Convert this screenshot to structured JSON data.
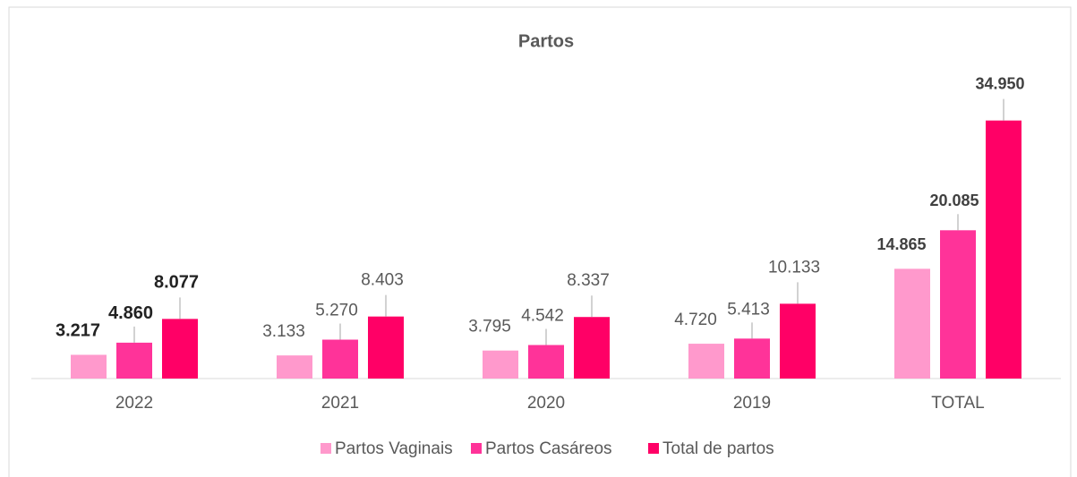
{
  "chart_data": {
    "type": "bar",
    "title": "Partos",
    "categories": [
      "2022",
      "2021",
      "2020",
      "2019",
      "TOTAL"
    ],
    "series": [
      {
        "name": "Partos Vaginais",
        "color": "#ff99cc",
        "values": [
          3217,
          3133,
          3795,
          4720,
          14865
        ],
        "value_labels": [
          "3.217",
          "3.133",
          "3.795",
          "4.720",
          "14.865"
        ]
      },
      {
        "name": "Partos Casáreos",
        "color": "#ff3399",
        "values": [
          4860,
          5270,
          4542,
          5413,
          20085
        ],
        "value_labels": [
          "4.860",
          "5.270",
          "4.542",
          "5.413",
          "20.085"
        ]
      },
      {
        "name": "Total de partos",
        "color": "#ff0066",
        "values": [
          8077,
          8403,
          8337,
          10133,
          34950
        ],
        "value_labels": [
          "8.077",
          "8.403",
          "8.337",
          "10.133",
          "34.950"
        ]
      }
    ],
    "ylim": [
      0,
      40000
    ],
    "legend": "bottom"
  }
}
